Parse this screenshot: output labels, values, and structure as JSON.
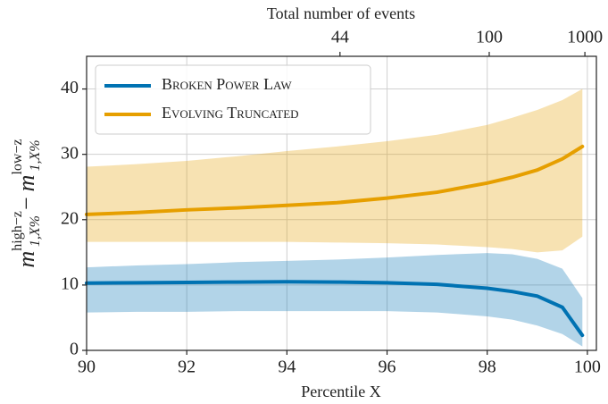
{
  "chart_data": {
    "type": "line",
    "xlabel": "Percentile X",
    "x2label": "Total number of events",
    "ylabel_parts": [
      "m",
      "1,X%",
      "high−z",
      "−",
      "m",
      "1,X%",
      "low−z"
    ],
    "x": [
      90,
      91,
      92,
      93,
      94,
      95,
      96,
      97,
      98,
      98.5,
      99,
      99.5,
      99.9
    ],
    "series": [
      {
        "name": "Broken Power Law",
        "color": "#0072b2",
        "values": [
          10.3,
          10.35,
          10.4,
          10.45,
          10.5,
          10.45,
          10.35,
          10.1,
          9.5,
          9.0,
          8.3,
          6.6,
          2.3
        ],
        "lower": [
          5.8,
          5.9,
          5.9,
          6.0,
          6.0,
          6.0,
          6.0,
          5.8,
          5.2,
          4.7,
          3.8,
          2.5,
          0.6
        ],
        "upper": [
          12.7,
          13.0,
          13.2,
          13.5,
          13.7,
          13.9,
          14.2,
          14.6,
          14.9,
          14.7,
          14.0,
          12.5,
          8.0
        ]
      },
      {
        "name": "Evolving Truncated",
        "color": "#e69f00",
        "values": [
          20.8,
          21.1,
          21.5,
          21.8,
          22.2,
          22.6,
          23.3,
          24.2,
          25.6,
          26.5,
          27.6,
          29.3,
          31.2
        ],
        "lower": [
          16.6,
          16.6,
          16.6,
          16.6,
          16.6,
          16.5,
          16.4,
          16.2,
          15.8,
          15.5,
          15.0,
          15.3,
          17.4
        ],
        "upper": [
          28.1,
          28.5,
          29.0,
          29.7,
          30.5,
          31.2,
          32.0,
          33.0,
          34.5,
          35.6,
          36.8,
          38.3,
          40.0
        ]
      }
    ],
    "xlim": [
      90,
      100.18
    ],
    "ylim": [
      0,
      45
    ],
    "xticks": [
      90,
      92,
      94,
      96,
      98,
      100
    ],
    "yticks": [
      0,
      10,
      20,
      30,
      40
    ],
    "x2ticks": [
      {
        "value": 95.06,
        "label": "44"
      },
      {
        "value": 98.04,
        "label": "100"
      },
      {
        "value": 99.95,
        "label": "1000"
      }
    ],
    "grid": true,
    "legend": "upper left"
  }
}
